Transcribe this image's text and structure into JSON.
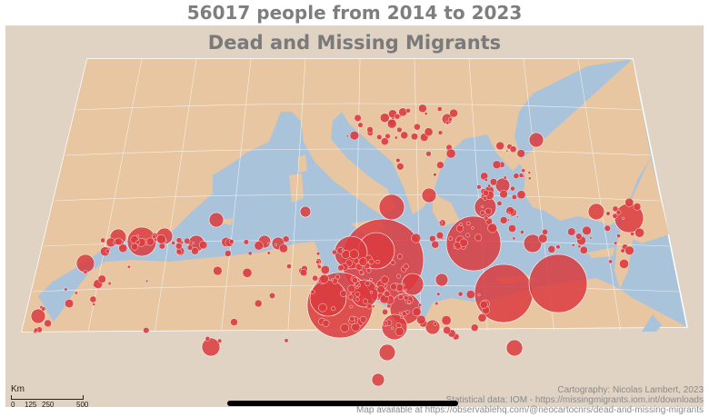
{
  "header": {
    "headline": "56017 people from 2014 to 2023"
  },
  "map": {
    "title": "Dead and Missing Migrants",
    "region": "Mediterranean Sea",
    "symbol": "proportional circles",
    "colors": {
      "sea": "#a9c3db",
      "land": "#e7c6a1",
      "outside_frame": "#e0d3c4",
      "graticule": "#ffffff",
      "circle_fill": "#db3b3e",
      "circle_stroke": "#ffffff",
      "title": "#7a7a7a"
    }
  },
  "scale": {
    "unit": "Km",
    "ticks": [
      "0",
      "125",
      "250",
      "500"
    ]
  },
  "credits": {
    "line1": "Cartography: Nicolas Lambert, 2023",
    "line2": "Statistical data: IOM - https://missingmigrants.iom.int/downloads",
    "line3": "Map available at https://observablehq.com/@neocartocnrs/dead-and-missing-migrants"
  }
}
